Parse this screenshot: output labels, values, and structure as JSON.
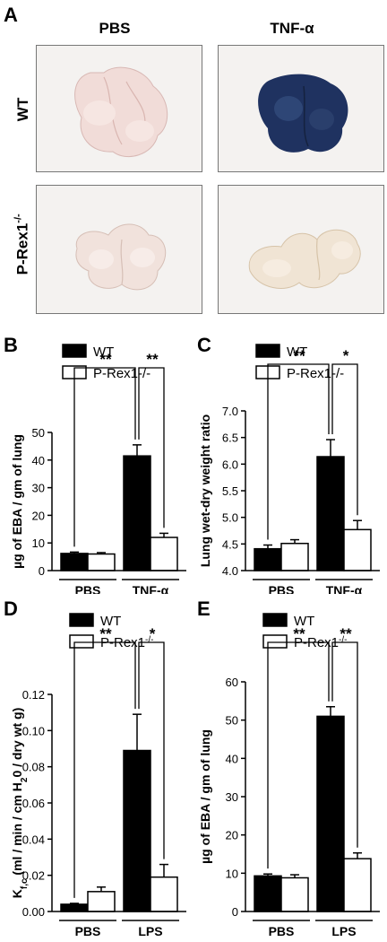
{
  "panelA": {
    "label": "A",
    "col_labels": [
      "PBS",
      "TNF-α"
    ],
    "row_labels": [
      "WT",
      "P-Rex1"
    ],
    "row_label_sup": "-/-"
  },
  "chart_data": [
    {
      "panel": "B",
      "type": "bar",
      "legend": [
        {
          "name": "WT",
          "fill": "#000000"
        },
        {
          "name": "P-Rex1-/-",
          "fill": "#ffffff"
        }
      ],
      "ylabel": "µg of EBA / gm of lung",
      "ylim": [
        0,
        50
      ],
      "yticks": [
        "0",
        "10",
        "20",
        "30",
        "40",
        "50"
      ],
      "groups": [
        "PBS",
        "TNF-α"
      ],
      "series": [
        {
          "name": "WT",
          "values": [
            6.2,
            41.5
          ],
          "errors": [
            0.5,
            4.0
          ]
        },
        {
          "name": "P-Rex1-/-",
          "values": [
            6.0,
            12.0
          ],
          "errors": [
            0.5,
            1.5
          ]
        }
      ],
      "significance": [
        {
          "text": "**",
          "from": "PBS-WT",
          "to": "TNF-WT"
        },
        {
          "text": "**",
          "from": "TNF-WT",
          "to": "TNF-KO"
        }
      ]
    },
    {
      "panel": "C",
      "type": "bar",
      "legend": [
        {
          "name": "WT",
          "fill": "#000000"
        },
        {
          "name": "P-Rex1-/-",
          "fill": "#ffffff"
        }
      ],
      "ylabel": "Lung wet-dry weight ratio",
      "ylim": [
        4.0,
        7.0
      ],
      "yticks": [
        "4.0",
        "4.5",
        "5.0",
        "5.5",
        "6.0",
        "6.5",
        "7.0"
      ],
      "groups": [
        "PBS",
        "TNF-α"
      ],
      "series": [
        {
          "name": "WT",
          "values": [
            4.41,
            6.14
          ],
          "errors": [
            0.07,
            0.32
          ]
        },
        {
          "name": "P-Rex1-/-",
          "values": [
            4.51,
            4.77
          ],
          "errors": [
            0.07,
            0.17
          ]
        }
      ],
      "significance": [
        {
          "text": "**",
          "from": "PBS-WT",
          "to": "TNF-WT"
        },
        {
          "text": "*",
          "from": "TNF-WT",
          "to": "TNF-KO"
        }
      ]
    },
    {
      "panel": "D",
      "type": "bar",
      "legend": [
        {
          "name": "WT",
          "fill": "#000000"
        },
        {
          "name": "P-Rex1",
          "sup": "-/-",
          "fill": "#ffffff"
        }
      ],
      "ylabel": "Kf,c (ml / min / cm H20 / dry wt g)",
      "ylim": [
        0,
        0.12
      ],
      "yticks": [
        "0.00",
        "0.02",
        "0.04",
        "0.06",
        "0.08",
        "0.10",
        "0.12"
      ],
      "groups": [
        "PBS",
        "LPS"
      ],
      "series": [
        {
          "name": "WT",
          "values": [
            0.004,
            0.089
          ],
          "errors": [
            0.0005,
            0.02
          ]
        },
        {
          "name": "P-Rex1-/-",
          "values": [
            0.011,
            0.019
          ],
          "errors": [
            0.0025,
            0.007
          ]
        }
      ],
      "significance": [
        {
          "text": "**",
          "from": "PBS-WT",
          "to": "LPS-WT"
        },
        {
          "text": "*",
          "from": "LPS-WT",
          "to": "LPS-KO"
        }
      ]
    },
    {
      "panel": "E",
      "type": "bar",
      "legend": [
        {
          "name": "WT",
          "fill": "#000000"
        },
        {
          "name": "P-Rex1",
          "sup": "-/-",
          "fill": "#ffffff"
        }
      ],
      "ylabel": "µg of EBA / gm of lung",
      "ylim": [
        0,
        60
      ],
      "yticks": [
        "0",
        "10",
        "20",
        "30",
        "40",
        "50",
        "60"
      ],
      "groups": [
        "PBS",
        "LPS"
      ],
      "series": [
        {
          "name": "WT",
          "values": [
            9.3,
            51.0
          ],
          "errors": [
            0.5,
            2.5
          ]
        },
        {
          "name": "P-Rex1-/-",
          "values": [
            8.8,
            13.8
          ],
          "errors": [
            0.8,
            1.5
          ]
        }
      ],
      "significance": [
        {
          "text": "**",
          "from": "PBS-WT",
          "to": "LPS-WT"
        },
        {
          "text": "**",
          "from": "LPS-WT",
          "to": "LPS-KO"
        }
      ]
    }
  ]
}
